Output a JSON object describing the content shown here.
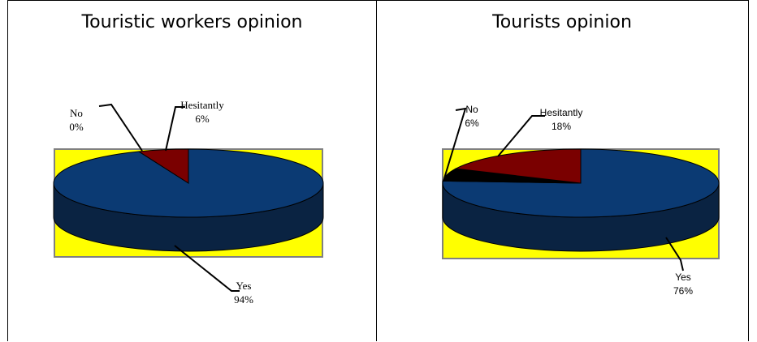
{
  "colors": {
    "yes": "#0b3a73",
    "yes_side": "#0a2342",
    "hesitantly": "#7a0000",
    "no": "#000000",
    "plot_area": "#ffff00",
    "plot_border": "#808080",
    "outline": "#000000"
  },
  "chart_data": [
    {
      "type": "pie",
      "title": "Touristic workers opinion",
      "slices": [
        {
          "name": "Yes",
          "value": 94,
          "label": "94%"
        },
        {
          "name": "Hesitantly",
          "value": 6,
          "label": "6%"
        },
        {
          "name": "No",
          "value": 0,
          "label": "0%"
        }
      ]
    },
    {
      "type": "pie",
      "title": "Tourists opinion",
      "slices": [
        {
          "name": "Yes",
          "value": 76,
          "label": "76%"
        },
        {
          "name": "Hesitantly",
          "value": 18,
          "label": "18%"
        },
        {
          "name": "No",
          "value": 6,
          "label": "6%"
        }
      ]
    }
  ]
}
